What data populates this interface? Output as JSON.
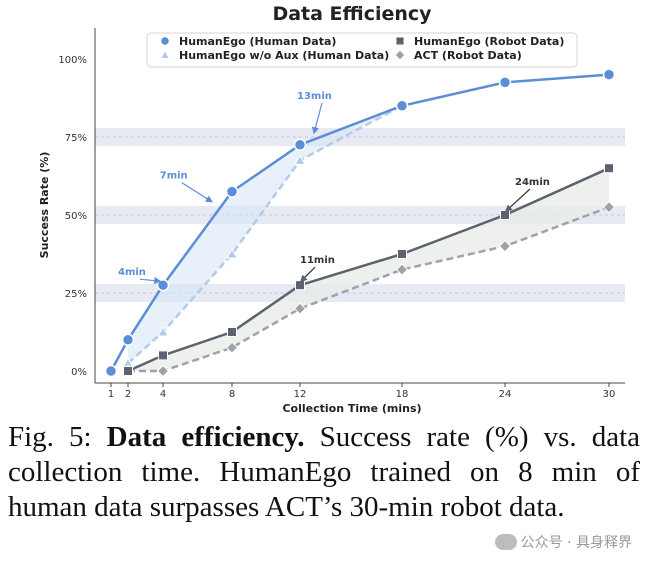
{
  "chart_data": {
    "type": "line",
    "title": "Data Efficiency",
    "xlabel": "Collection Time (mins)",
    "ylabel": "Success Rate (%)",
    "x_ticks": [
      1,
      2,
      4,
      8,
      12,
      18,
      24,
      30
    ],
    "y_ticks": [
      0,
      25,
      50,
      75,
      100
    ],
    "y_tick_labels": [
      "0%",
      "25%",
      "50%",
      "75%",
      "100%"
    ],
    "ylim": [
      0,
      100
    ],
    "grid": false,
    "highlight_bands": [
      25,
      50,
      75
    ],
    "legend_position": "top-center",
    "series": [
      {
        "name": "HumanEgo (Human Data)",
        "x": [
          1,
          2,
          4,
          8,
          12,
          18,
          24,
          30
        ],
        "y": [
          0,
          10,
          27.5,
          57.5,
          72.5,
          85,
          92.5,
          95
        ],
        "color": "#5b8ed6",
        "marker": "circle",
        "dash": false
      },
      {
        "name": "HumanEgo w/o Aux (Human Data)",
        "x": [
          2,
          4,
          8,
          12,
          18
        ],
        "y": [
          2.5,
          12.5,
          37.5,
          67.5,
          85
        ],
        "color": "#b3cbea",
        "marker": "triangle",
        "dash": true
      },
      {
        "name": "HumanEgo (Robot Data)",
        "x": [
          2,
          4,
          8,
          12,
          18,
          24,
          30
        ],
        "y": [
          0,
          5,
          12.5,
          27.5,
          37.5,
          50,
          65
        ],
        "color": "#5c6270",
        "marker": "square",
        "dash": false
      },
      {
        "name": "ACT (Robot Data)",
        "x": [
          2,
          4,
          8,
          12,
          18,
          24,
          30
        ],
        "y": [
          0,
          0,
          7.5,
          20,
          32.5,
          40,
          52.5
        ],
        "color": "#9ea2ab",
        "marker": "diamond",
        "dash": true
      }
    ],
    "annotations": [
      {
        "text": "4min",
        "series": "HumanEgo (Human Data)",
        "x": 4,
        "y": 27.5
      },
      {
        "text": "7min",
        "series": "HumanEgo (Human Data)",
        "x": 7,
        "y": 53
      },
      {
        "text": "13min",
        "series": "HumanEgo (Human Data)",
        "x": 13,
        "y": 75
      },
      {
        "text": "11min",
        "series": "HumanEgo (Robot Data)",
        "x": 12,
        "y": 27.5
      },
      {
        "text": "24min",
        "series": "HumanEgo (Robot Data)",
        "x": 24,
        "y": 50
      }
    ]
  },
  "caption": {
    "fig_label": "Fig. 5:",
    "bold_text": "Data efficiency.",
    "rest_text": " Success rate (%) vs. data collection time. HumanEgo trained on 8 min of human data surpasses ACT’s 30-min robot data."
  },
  "watermark": {
    "text": "公众号 · 具身释界"
  }
}
